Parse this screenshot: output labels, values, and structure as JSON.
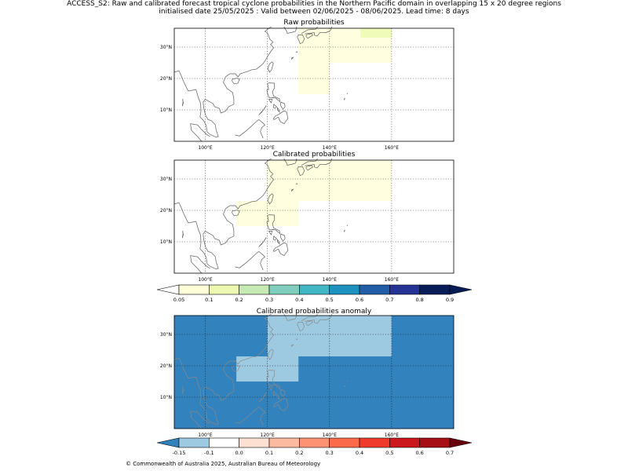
{
  "header": {
    "line1": "ACCESS_S2: Raw and calibrated forecast tropical cyclone probabilities in the Northern Pacific domain in overlapping 15 x 20 degree regions",
    "line2": "initialised date 25/05/2025 :  Valid between 02/06/2025 - 08/06/2025. Lead time: 8 days"
  },
  "panels": [
    {
      "title": "Raw probabilities",
      "regions": [
        {
          "lon": [
            130,
            160
          ],
          "lat": [
            25,
            38
          ],
          "fill": "#ffffe0"
        },
        {
          "lon": [
            150,
            160
          ],
          "lat": [
            33,
            38
          ],
          "fill": "#eefcb8"
        },
        {
          "lon": [
            130,
            140
          ],
          "lat": [
            15,
            25
          ],
          "fill": "#ffffe0"
        }
      ]
    },
    {
      "title": "Calibrated probabilities",
      "regions": [
        {
          "lon": [
            120,
            160
          ],
          "lat": [
            23,
            38
          ],
          "fill": "#ffffe0"
        },
        {
          "lon": [
            110,
            130
          ],
          "lat": [
            15,
            23
          ],
          "fill": "#ffffe0"
        }
      ]
    },
    {
      "title": "Calibrated probabilities anomaly",
      "background": "#3182bd",
      "regions": [
        {
          "lon": [
            120,
            160
          ],
          "lat": [
            23,
            38
          ],
          "fill": "#9ecae1"
        },
        {
          "lon": [
            110,
            130
          ],
          "lat": [
            15,
            23
          ],
          "fill": "#9ecae1"
        }
      ]
    }
  ],
  "map_axes": {
    "lon_range": [
      90,
      180
    ],
    "lat_range": [
      0,
      36
    ],
    "lon_ticks": [
      "100°E",
      "120°E",
      "140°E",
      "160°E"
    ],
    "lon_tick_values": [
      100,
      120,
      140,
      160
    ],
    "lat_ticks": [
      "10°N",
      "20°N",
      "30°N"
    ],
    "lat_tick_values": [
      10,
      20,
      30
    ]
  },
  "colorbar_prob": {
    "labels": [
      "0.05",
      "0.1",
      "0.2",
      "0.3",
      "0.4",
      "0.5",
      "0.6",
      "0.7",
      "0.8",
      "0.9"
    ],
    "colors": [
      "#ffffd9",
      "#edf8b1",
      "#c7e9b4",
      "#7fcdbb",
      "#41b6c4",
      "#1d91c0",
      "#225ea8",
      "#253494",
      "#081d58"
    ],
    "extend_low": "#ffffff",
    "extend_high": "#081d58"
  },
  "colorbar_anom": {
    "labels": [
      "-0.15",
      "-0.1",
      "0.0",
      "0.1",
      "0.2",
      "0.3",
      "0.4",
      "0.5",
      "0.6",
      "0.7"
    ],
    "colors": [
      "#9ecae1",
      "#ffffff",
      "#fee0d2",
      "#fcbba1",
      "#fc9272",
      "#fb6a4a",
      "#ef3b2c",
      "#cb181d",
      "#a50f15"
    ],
    "extend_low": "#3182bd",
    "extend_high": "#67000d"
  },
  "footer": {
    "credit": "© Commonwealth of Australia 2025, Australian Bureau of Meteorology"
  }
}
